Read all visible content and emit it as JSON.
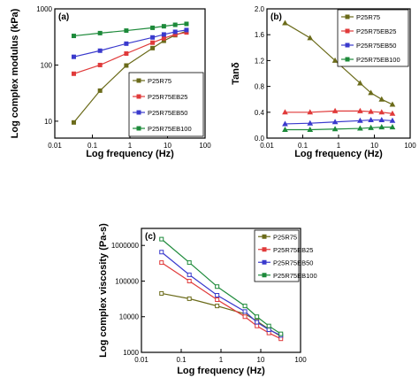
{
  "chart_data": [
    {
      "panel_label": "(a)",
      "type": "line",
      "xscale": "log",
      "yscale": "log",
      "xlabel": "Log frequency (Hz)",
      "ylabel": "Log complex modulus (kPa)",
      "xlim": [
        0.01,
        100
      ],
      "ylim": [
        5,
        1000
      ],
      "x_ticks": [
        "0.01",
        "0.1",
        "1",
        "10",
        "100"
      ],
      "y_ticks": [
        "10",
        "100",
        "1000"
      ],
      "legend_position": "bottom-right",
      "series": [
        {
          "name": "P25R75",
          "color": "#6b6b1a",
          "marker": "square",
          "x": [
            0.032,
            0.16,
            0.8,
            4,
            8,
            16,
            32
          ],
          "y": [
            9.5,
            35,
            98,
            200,
            270,
            340,
            400
          ]
        },
        {
          "name": "P25R75EB25",
          "color": "#e03a3a",
          "marker": "square",
          "x": [
            0.032,
            0.16,
            0.8,
            4,
            8,
            16,
            32
          ],
          "y": [
            70,
            100,
            160,
            250,
            300,
            350,
            380
          ]
        },
        {
          "name": "P25R75EB50",
          "color": "#3a3acd",
          "marker": "square",
          "x": [
            0.032,
            0.16,
            0.8,
            4,
            8,
            16,
            32
          ],
          "y": [
            140,
            180,
            240,
            310,
            350,
            390,
            420
          ]
        },
        {
          "name": "P25R75EB100",
          "color": "#1d8a3a",
          "marker": "square",
          "x": [
            0.032,
            0.16,
            0.8,
            4,
            8,
            16,
            32
          ],
          "y": [
            330,
            370,
            410,
            460,
            490,
            520,
            540
          ]
        }
      ]
    },
    {
      "panel_label": "(b)",
      "type": "line",
      "xscale": "log",
      "yscale": "linear",
      "xlabel": "Log frequency (Hz)",
      "ylabel": "Tanδ",
      "xlim": [
        0.01,
        100
      ],
      "ylim": [
        0.0,
        2.0
      ],
      "x_ticks": [
        "0.01",
        "0.1",
        "1",
        "10",
        "100"
      ],
      "y_ticks": [
        "0.0",
        "0.4",
        "0.8",
        "1.2",
        "1.6",
        "2.0"
      ],
      "legend_position": "top-right",
      "series": [
        {
          "name": "P25R75",
          "color": "#6b6b1a",
          "marker": "triangle",
          "x": [
            0.032,
            0.16,
            0.8,
            4,
            8,
            16,
            32
          ],
          "y": [
            1.78,
            1.55,
            1.2,
            0.85,
            0.7,
            0.6,
            0.52
          ]
        },
        {
          "name": "P25R75EB25",
          "color": "#e03a3a",
          "marker": "triangle",
          "x": [
            0.032,
            0.16,
            0.8,
            4,
            8,
            16,
            32
          ],
          "y": [
            0.4,
            0.4,
            0.42,
            0.42,
            0.41,
            0.4,
            0.38
          ]
        },
        {
          "name": "P25R75EB50",
          "color": "#3a3acd",
          "marker": "triangle",
          "x": [
            0.032,
            0.16,
            0.8,
            4,
            8,
            16,
            32
          ],
          "y": [
            0.22,
            0.23,
            0.25,
            0.27,
            0.28,
            0.28,
            0.27
          ]
        },
        {
          "name": "P25R75EB100",
          "color": "#1d8a3a",
          "marker": "triangle",
          "x": [
            0.032,
            0.16,
            0.8,
            4,
            8,
            16,
            32
          ],
          "y": [
            0.13,
            0.13,
            0.14,
            0.15,
            0.16,
            0.17,
            0.17
          ]
        }
      ]
    },
    {
      "panel_label": "(c)",
      "type": "line",
      "xscale": "log",
      "yscale": "log",
      "xlabel": "Log frequency (Hz)",
      "ylabel": "Log complex viscosity (Pa-s)",
      "xlim": [
        0.01,
        100
      ],
      "ylim": [
        1000,
        3000000
      ],
      "x_ticks": [
        "0.01",
        "0.1",
        "1",
        "10",
        "100"
      ],
      "y_ticks": [
        "1000",
        "10000",
        "100000",
        "1000000"
      ],
      "legend_position": "top-right",
      "series": [
        {
          "name": "P25R75",
          "color": "#6b6b1a",
          "marker": "square",
          "x": [
            0.032,
            0.16,
            0.8,
            4,
            8,
            16,
            32
          ],
          "y": [
            45000,
            32000,
            20000,
            12000,
            7500,
            4500,
            2800
          ]
        },
        {
          "name": "P25R75EB25",
          "color": "#e03a3a",
          "marker": "square",
          "x": [
            0.032,
            0.16,
            0.8,
            4,
            8,
            16,
            32
          ],
          "y": [
            330000,
            100000,
            30000,
            10000,
            5500,
            3500,
            2400
          ]
        },
        {
          "name": "P25R75EB50",
          "color": "#3a3acd",
          "marker": "square",
          "x": [
            0.032,
            0.16,
            0.8,
            4,
            8,
            16,
            32
          ],
          "y": [
            650000,
            150000,
            40000,
            14000,
            7000,
            4300,
            3000
          ]
        },
        {
          "name": "P25R75EB100",
          "color": "#1d8a3a",
          "marker": "square",
          "x": [
            0.032,
            0.16,
            0.8,
            4,
            8,
            16,
            32
          ],
          "y": [
            1500000,
            330000,
            70000,
            20000,
            10000,
            5500,
            3300
          ]
        }
      ]
    }
  ]
}
